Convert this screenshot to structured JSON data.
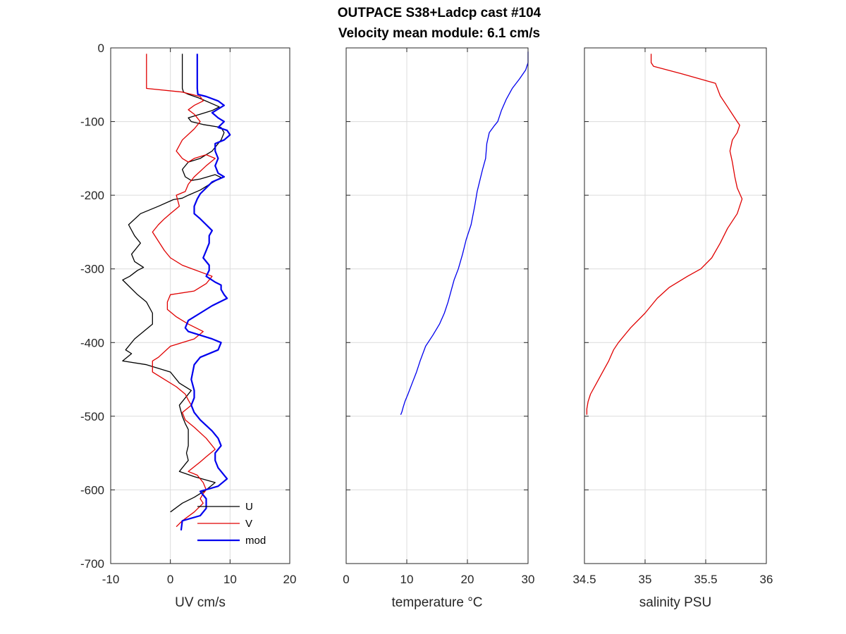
{
  "title": {
    "line1": "OUTPACE S38+Ladcp cast #104",
    "line2": "Velocity mean module:  6.1 cm/s"
  },
  "colors": {
    "u": "#000000",
    "v": "#e00000",
    "mod": "#0000ee",
    "temp": "#0000ee",
    "sal": "#e00000"
  },
  "chart_data": [
    {
      "type": "line",
      "id": "uv",
      "xlabel": "UV cm/s",
      "ylabel": "",
      "xlim": [
        -10,
        20
      ],
      "ylim": [
        -700,
        0
      ],
      "xticks": [
        -10,
        0,
        10,
        20
      ],
      "yticks": [
        0,
        -100,
        -200,
        -300,
        -400,
        -500,
        -600,
        -700
      ],
      "grid": true,
      "legend": {
        "placement": "bottom-right",
        "entries": [
          "U",
          "V",
          "mod"
        ]
      },
      "series": [
        {
          "name": "U",
          "x": [
            2,
            2,
            2.2,
            3,
            4.8,
            8.2,
            7,
            5,
            3,
            3.5,
            5.5,
            8.5,
            9,
            8.5,
            7,
            6,
            5,
            3,
            2,
            2.5,
            3.5,
            5,
            7.5,
            8.5,
            7,
            5,
            3,
            2.5,
            2,
            0.5,
            -2,
            -5,
            -7,
            -6,
            -5,
            -6.5,
            -6,
            -4.5,
            -5.5,
            -6.8,
            -8,
            -5.5,
            -4,
            -3,
            -3,
            -6,
            -7.5,
            -6.5,
            -8,
            -4,
            0,
            1.5,
            3.5,
            1.5,
            2,
            2.5,
            3,
            3,
            3,
            2.7,
            3,
            2.5,
            1.5,
            4,
            7.5,
            6,
            4,
            2,
            0
          ],
          "y": [
            -8,
            -55,
            -60,
            -63,
            -68,
            -80,
            -85,
            -90,
            -95,
            -100,
            -104,
            -108,
            -115,
            -125,
            -140,
            -145,
            -150,
            -155,
            -165,
            -175,
            -180,
            -178,
            -172,
            -176,
            -183,
            -193,
            -200,
            -202,
            -204,
            -206,
            -215,
            -225,
            -240,
            -255,
            -265,
            -280,
            -290,
            -298,
            -302,
            -310,
            -315,
            -335,
            -345,
            -360,
            -375,
            -395,
            -410,
            -415,
            -425,
            -430,
            -440,
            -455,
            -465,
            -485,
            -500,
            -510,
            -518,
            -525,
            -540,
            -550,
            -560,
            -565,
            -575,
            -582,
            -590,
            -600,
            -610,
            -618,
            -630
          ]
        },
        {
          "name": "V",
          "x": [
            -4,
            -4,
            2,
            5,
            5.5,
            4,
            3,
            4,
            4.5,
            5,
            4,
            2,
            1,
            2,
            3,
            4,
            6,
            7.5,
            6,
            4,
            3,
            2.5,
            1,
            1.5,
            0,
            -1,
            -2,
            -3,
            -1,
            0,
            2,
            7,
            6,
            4,
            0,
            -0.5,
            -0.5,
            1,
            3,
            5.5,
            4,
            0,
            -2,
            -3,
            -3,
            -1,
            1,
            2.5,
            3,
            3.5,
            2,
            2.5,
            4,
            6,
            7.5,
            6,
            5,
            3,
            4.5,
            5.5,
            6,
            5.5,
            5,
            5.5,
            4,
            2,
            1
          ],
          "y": [
            -8,
            -55,
            -60,
            -66,
            -72,
            -78,
            -84,
            -90,
            -95,
            -100,
            -110,
            -125,
            -140,
            -150,
            -155,
            -150,
            -145,
            -150,
            -160,
            -175,
            -185,
            -195,
            -200,
            -215,
            -225,
            -232,
            -240,
            -250,
            -275,
            -285,
            -295,
            -310,
            -320,
            -330,
            -335,
            -345,
            -355,
            -365,
            -375,
            -385,
            -395,
            -405,
            -420,
            -425,
            -440,
            -450,
            -460,
            -470,
            -478,
            -485,
            -495,
            -505,
            -515,
            -530,
            -545,
            -555,
            -562,
            -575,
            -580,
            -590,
            -600,
            -605,
            -612,
            -618,
            -630,
            -642,
            -650
          ]
        },
        {
          "name": "mod",
          "x": [
            4.5,
            4.5,
            4.6,
            6,
            8,
            9,
            8,
            7,
            8,
            9,
            8,
            9.5,
            10,
            9,
            7.5,
            7.5,
            8,
            7.5,
            8,
            9,
            7,
            6,
            5,
            4.5,
            4,
            4,
            5,
            6,
            7,
            6.5,
            6.5,
            6,
            5.5,
            6.5,
            6.5,
            6,
            7.5,
            8.5,
            8.5,
            9,
            9.5,
            7,
            5,
            3,
            2.5,
            3,
            5,
            7,
            8.5,
            8,
            5,
            4,
            3.5,
            4,
            4,
            3.5,
            4,
            5,
            7,
            8,
            8.5,
            7.5,
            7.5,
            8,
            9.5,
            8,
            5,
            6,
            6,
            5,
            2,
            1.8
          ],
          "y": [
            -8,
            -55,
            -63,
            -66,
            -72,
            -78,
            -83,
            -88,
            -95,
            -100,
            -108,
            -112,
            -118,
            -125,
            -130,
            -140,
            -150,
            -160,
            -170,
            -175,
            -182,
            -190,
            -198,
            -205,
            -215,
            -225,
            -232,
            -240,
            -248,
            -255,
            -265,
            -275,
            -285,
            -295,
            -302,
            -310,
            -318,
            -322,
            -328,
            -335,
            -340,
            -350,
            -360,
            -370,
            -380,
            -385,
            -390,
            -395,
            -400,
            -410,
            -420,
            -430,
            -450,
            -465,
            -475,
            -485,
            -495,
            -505,
            -520,
            -530,
            -540,
            -550,
            -560,
            -570,
            -585,
            -595,
            -602,
            -612,
            -625,
            -635,
            -642,
            -655
          ]
        }
      ]
    },
    {
      "type": "line",
      "id": "temp",
      "xlabel": "temperature °C",
      "ylabel": "",
      "xlim": [
        0,
        30
      ],
      "ylim": [
        -700,
        0
      ],
      "xticks": [
        0,
        10,
        20,
        30
      ],
      "yticks": [
        0,
        -100,
        -200,
        -300,
        -400,
        -500,
        -600,
        -700
      ],
      "grid": true,
      "series": [
        {
          "name": "temperature",
          "x": [
            30,
            30,
            29.6,
            28.6,
            27.4,
            26.4,
            25.6,
            25,
            24.5,
            23.6,
            23.2,
            23,
            22.5,
            22.2,
            21.6,
            21.2,
            20.6,
            19.8,
            19.2,
            18.5,
            17.8,
            17.3,
            16.8,
            16.2,
            15.4,
            14.3,
            13.1,
            12.2,
            11.6,
            10.9,
            10.2,
            9.7,
            9.4,
            9.2,
            9.0,
            9.0
          ],
          "y": [
            -5,
            -20,
            -30,
            -42,
            -55,
            -70,
            -85,
            -100,
            -105,
            -115,
            -130,
            -150,
            -165,
            -175,
            -195,
            -215,
            -240,
            -260,
            -280,
            -300,
            -315,
            -330,
            -345,
            -360,
            -375,
            -390,
            -405,
            -425,
            -440,
            -455,
            -470,
            -480,
            -488,
            -494,
            -498,
            -498
          ]
        }
      ]
    },
    {
      "type": "line",
      "id": "sal",
      "xlabel": "salinity PSU",
      "ylabel": "",
      "xlim": [
        34.5,
        36
      ],
      "ylim": [
        -700,
        0
      ],
      "xticks": [
        34.5,
        35,
        35.5,
        36
      ],
      "yticks": [
        0,
        -100,
        -200,
        -300,
        -400,
        -500,
        -600,
        -700
      ],
      "grid": true,
      "series": [
        {
          "name": "salinity",
          "x": [
            35.05,
            35.05,
            35.07,
            35.3,
            35.58,
            35.62,
            35.68,
            35.72,
            35.76,
            35.78,
            35.76,
            35.72,
            35.7,
            35.72,
            35.74,
            35.76,
            35.8,
            35.76,
            35.68,
            35.62,
            35.55,
            35.46,
            35.35,
            35.2,
            35.1,
            35.0,
            34.88,
            34.78,
            34.74,
            34.7,
            34.65,
            34.6,
            34.55,
            34.53,
            34.52,
            34.52
          ],
          "y": [
            -8,
            -20,
            -25,
            -35,
            -48,
            -65,
            -80,
            -90,
            -100,
            -105,
            -115,
            -125,
            -140,
            -155,
            -175,
            -190,
            -205,
            -225,
            -245,
            -265,
            -285,
            -300,
            -310,
            -325,
            -340,
            -360,
            -380,
            -400,
            -410,
            -425,
            -440,
            -455,
            -470,
            -480,
            -490,
            -498
          ]
        }
      ]
    }
  ]
}
